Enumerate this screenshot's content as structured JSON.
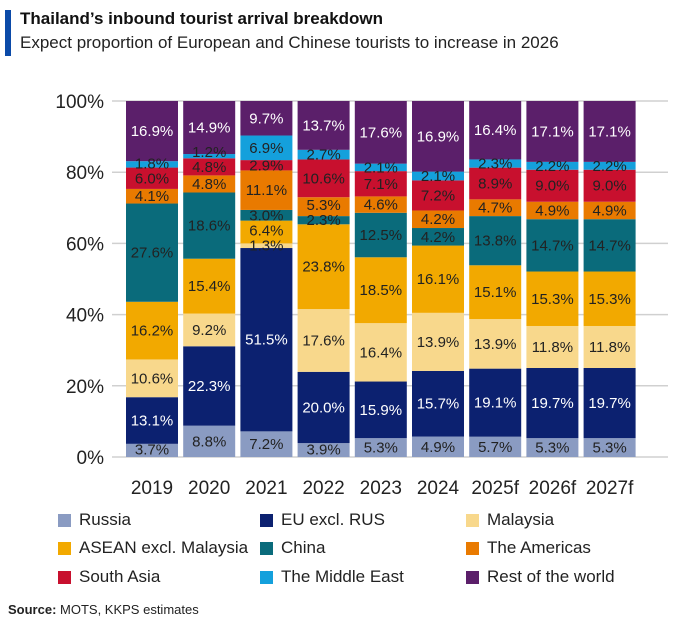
{
  "header": {
    "title": "Thailand’s inbound tourist arrival breakdown",
    "subtitle": "Expect proportion of European and Chinese tourists to increase in 2026"
  },
  "source": {
    "label": "Source:",
    "text": " MOTS, KKPS estimates"
  },
  "chart_data": {
    "type": "bar",
    "stacked": true,
    "categories": [
      "2019",
      "2020",
      "2021",
      "2022",
      "2023",
      "2024",
      "2025f",
      "2026f",
      "2027f"
    ],
    "yticks": [
      "0%",
      "20%",
      "40%",
      "60%",
      "80%",
      "100%"
    ],
    "ylim": [
      0,
      100
    ],
    "grid": true,
    "legend_position": "bottom",
    "series": [
      {
        "name": "Russia",
        "color": "#8a9bc2",
        "label_color": "#222",
        "values": [
          3.7,
          8.8,
          7.2,
          3.9,
          5.3,
          4.9,
          5.7,
          5.3,
          5.3
        ]
      },
      {
        "name": "EU excl. RUS",
        "color": "#0c2170",
        "label_color": "#fff",
        "values": [
          13.1,
          22.3,
          51.5,
          20.0,
          15.9,
          15.7,
          19.1,
          19.7,
          19.7
        ]
      },
      {
        "name": "Malaysia",
        "color": "#f8d88c",
        "label_color": "#222",
        "values": [
          10.6,
          9.2,
          1.3,
          17.6,
          16.4,
          13.9,
          13.9,
          11.8,
          11.8
        ]
      },
      {
        "name": "ASEAN excl. Malaysia",
        "color": "#f2a900",
        "label_color": "#222",
        "values": [
          16.2,
          15.4,
          6.4,
          23.8,
          18.5,
          16.1,
          15.1,
          15.3,
          15.3
        ]
      },
      {
        "name": "China",
        "color": "#0a6b7b",
        "label_color": "#222",
        "values": [
          27.6,
          18.6,
          3.0,
          2.3,
          12.5,
          4.2,
          13.8,
          14.7,
          14.7
        ]
      },
      {
        "name": "The Americas",
        "color": "#e97a00",
        "label_color": "#222",
        "values": [
          4.1,
          4.8,
          11.1,
          5.3,
          4.6,
          4.2,
          4.7,
          4.9,
          4.9
        ]
      },
      {
        "name": "South Asia",
        "color": "#c8102e",
        "label_color": "#222",
        "values": [
          6.0,
          4.8,
          2.9,
          10.6,
          7.1,
          7.2,
          8.9,
          9.0,
          9.0
        ]
      },
      {
        "name": "The Middle East",
        "color": "#14a0dc",
        "label_color": "#222",
        "values": [
          1.8,
          1.2,
          6.9,
          2.7,
          2.1,
          2.1,
          2.3,
          2.2,
          2.2
        ]
      },
      {
        "name": "Rest of the world",
        "color": "#5b1f6a",
        "label_color": "#fff",
        "values": [
          16.9,
          14.9,
          9.7,
          13.7,
          17.6,
          16.9,
          16.4,
          17.1,
          17.1
        ]
      }
    ]
  }
}
